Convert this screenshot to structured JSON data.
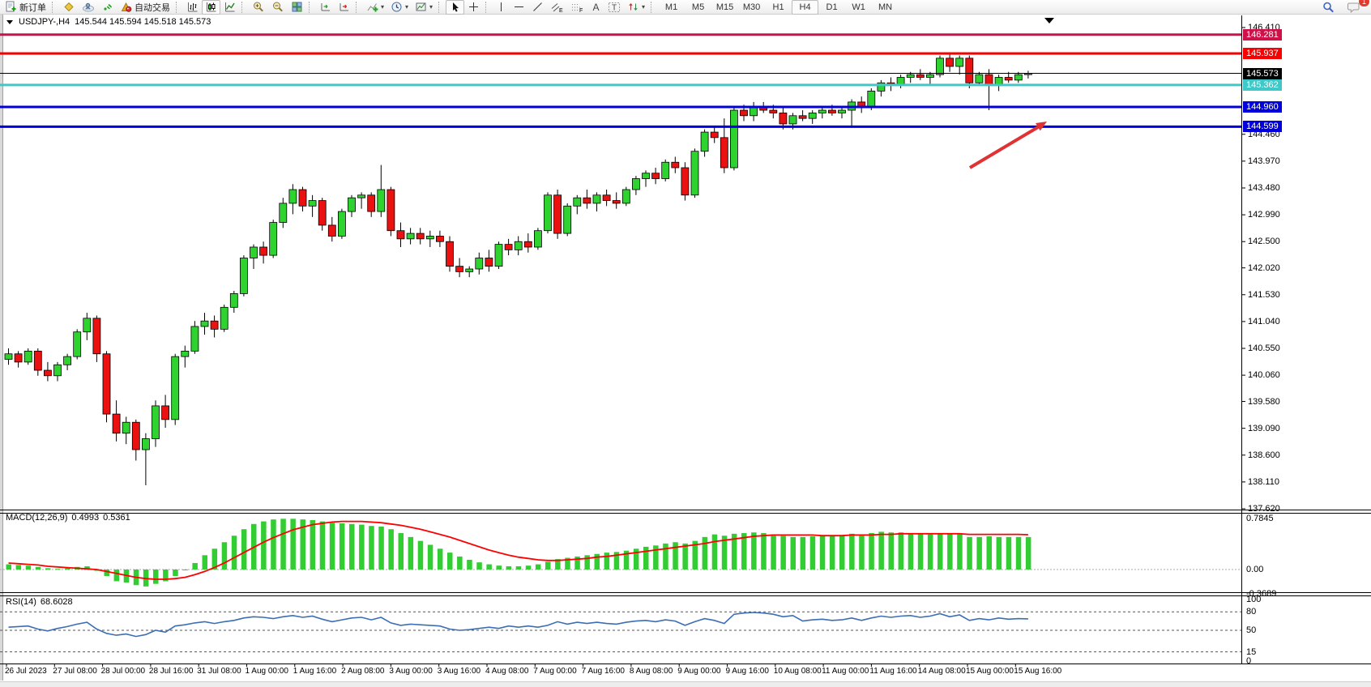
{
  "toolbar": {
    "new_order_label": "新订单",
    "autotrade_label": "自动交易",
    "tool_letters": {
      "channel": "E",
      "fibo": "F",
      "text": "A",
      "label": "T"
    },
    "timeframes": [
      "M1",
      "M5",
      "M15",
      "M30",
      "H1",
      "H4",
      "D1",
      "W1",
      "MN"
    ],
    "active_timeframe": "H4",
    "chat_badge": "1"
  },
  "window": {
    "title": "USDJPY-,H4",
    "ohlc_text": "145.544 145.594 145.518 145.573",
    "open": "145.544",
    "high": "145.594",
    "low": "145.518",
    "close": "145.573"
  },
  "price_axis": {
    "ticks": [
      "146.410",
      "144.460",
      "143.970",
      "143.480",
      "142.990",
      "142.500",
      "142.020",
      "141.530",
      "141.040",
      "140.550",
      "140.060",
      "139.580",
      "139.090",
      "138.600",
      "138.110",
      "137.620"
    ]
  },
  "objects": {
    "hlines": [
      {
        "price": "146.281",
        "value": 146.281,
        "color": "#CE1249",
        "width": 3
      },
      {
        "price": "145.937",
        "value": 145.937,
        "color": "#F60000",
        "width": 3
      },
      {
        "price": "145.573",
        "value": 145.573,
        "color": "#000000",
        "width": 1,
        "current": true
      },
      {
        "price": "145.362",
        "value": 145.362,
        "color": "#3FC8C8",
        "width": 3
      },
      {
        "price": "144.960",
        "value": 144.96,
        "color": "#0000DE",
        "width": 3
      },
      {
        "price": "144.599",
        "value": 144.599,
        "color": "#0000DE",
        "width": 3
      }
    ],
    "arrow": {
      "from": [
        1197,
        207
      ],
      "to": [
        1292,
        150
      ],
      "color": "#E03232"
    }
  },
  "macd": {
    "label": "MACD(12,26,9)",
    "value1": "0.4993",
    "value2": "0.5361",
    "axis": [
      "0.7845",
      "0.00",
      "-0.3689"
    ]
  },
  "rsi": {
    "label": "RSI(14)",
    "value": "68.6028",
    "axis": [
      "100",
      "80",
      "50",
      "15",
      "0"
    ]
  },
  "colors": {
    "bull": "#2FD32F",
    "bear": "#EC1111",
    "wick": "#000000",
    "macd_bar": "#32CD32",
    "macd_signal": "#FF0000",
    "rsi_line": "#3B6EB5"
  },
  "chart_data": [
    {
      "type": "candlestick",
      "name": "USDJPY- H4",
      "ylim": [
        137.62,
        146.41
      ],
      "x_labels": [
        "26 Jul 2023",
        "27 Jul 08:00",
        "28 Jul 00:00",
        "28 Jul 16:00",
        "31 Jul 08:00",
        "1 Aug 00:00",
        "1 Aug 16:00",
        "2 Aug 08:00",
        "3 Aug 00:00",
        "3 Aug 16:00",
        "4 Aug 08:00",
        "7 Aug 00:00",
        "7 Aug 16:00",
        "8 Aug 08:00",
        "9 Aug 00:00",
        "9 Aug 16:00",
        "10 Aug 08:00",
        "11 Aug 00:00",
        "11 Aug 16:00",
        "14 Aug 08:00",
        "15 Aug 00:00",
        "15 Aug 16:00"
      ],
      "ohlc": [
        [
          140.35,
          140.55,
          140.25,
          140.45
        ],
        [
          140.45,
          140.5,
          140.2,
          140.3
        ],
        [
          140.3,
          140.55,
          140.25,
          140.5
        ],
        [
          140.5,
          140.55,
          140.05,
          140.15
        ],
        [
          140.15,
          140.3,
          139.95,
          140.05
        ],
        [
          140.05,
          140.3,
          139.95,
          140.25
        ],
        [
          140.25,
          140.45,
          140.15,
          140.4
        ],
        [
          140.4,
          140.9,
          140.35,
          140.85
        ],
        [
          140.85,
          141.2,
          140.7,
          141.1
        ],
        [
          141.1,
          141.15,
          140.3,
          140.45
        ],
        [
          140.45,
          140.5,
          139.2,
          139.35
        ],
        [
          139.35,
          139.6,
          138.85,
          139.0
        ],
        [
          139.0,
          139.3,
          138.8,
          139.2
        ],
        [
          139.2,
          139.25,
          138.5,
          138.7
        ],
        [
          138.7,
          139.0,
          138.05,
          138.9
        ],
        [
          138.9,
          139.6,
          138.75,
          139.5
        ],
        [
          139.5,
          139.7,
          139.1,
          139.25
        ],
        [
          139.25,
          140.45,
          139.15,
          140.4
        ],
        [
          140.4,
          140.6,
          140.2,
          140.5
        ],
        [
          140.5,
          141.05,
          140.45,
          140.95
        ],
        [
          140.95,
          141.2,
          140.8,
          141.05
        ],
        [
          141.05,
          141.15,
          140.75,
          140.9
        ],
        [
          140.9,
          141.35,
          140.85,
          141.3
        ],
        [
          141.3,
          141.6,
          141.2,
          141.55
        ],
        [
          141.55,
          142.25,
          141.5,
          142.2
        ],
        [
          142.2,
          142.45,
          142.0,
          142.4
        ],
        [
          142.4,
          142.5,
          142.1,
          142.25
        ],
        [
          142.25,
          142.9,
          142.2,
          142.85
        ],
        [
          142.85,
          143.3,
          142.75,
          143.2
        ],
        [
          143.2,
          143.55,
          143.0,
          143.45
        ],
        [
          143.45,
          143.5,
          143.05,
          143.15
        ],
        [
          143.15,
          143.35,
          142.95,
          143.25
        ],
        [
          143.25,
          143.3,
          142.7,
          142.8
        ],
        [
          142.8,
          142.95,
          142.5,
          142.6
        ],
        [
          142.6,
          143.1,
          142.55,
          143.05
        ],
        [
          143.05,
          143.35,
          142.95,
          143.3
        ],
        [
          143.3,
          143.4,
          143.1,
          143.35
        ],
        [
          143.35,
          143.4,
          142.95,
          143.05
        ],
        [
          143.05,
          143.9,
          142.95,
          143.45
        ],
        [
          143.45,
          143.5,
          142.6,
          142.7
        ],
        [
          142.7,
          142.85,
          142.4,
          142.55
        ],
        [
          142.55,
          142.75,
          142.45,
          142.65
        ],
        [
          142.65,
          142.75,
          142.45,
          142.55
        ],
        [
          142.55,
          142.7,
          142.4,
          142.6
        ],
        [
          142.6,
          142.7,
          142.4,
          142.5
        ],
        [
          142.5,
          142.6,
          141.95,
          142.05
        ],
        [
          142.05,
          142.2,
          141.85,
          141.95
        ],
        [
          141.95,
          142.05,
          141.85,
          142.0
        ],
        [
          142.0,
          142.3,
          141.9,
          142.2
        ],
        [
          142.2,
          142.35,
          141.95,
          142.05
        ],
        [
          142.05,
          142.5,
          142.0,
          142.45
        ],
        [
          142.45,
          142.55,
          142.25,
          142.35
        ],
        [
          142.35,
          142.6,
          142.25,
          142.5
        ],
        [
          142.5,
          142.65,
          142.3,
          142.4
        ],
        [
          142.4,
          142.75,
          142.35,
          142.7
        ],
        [
          142.7,
          143.4,
          142.65,
          143.35
        ],
        [
          143.35,
          143.45,
          142.55,
          142.65
        ],
        [
          142.65,
          143.2,
          142.6,
          143.15
        ],
        [
          143.15,
          143.35,
          143.0,
          143.3
        ],
        [
          143.3,
          143.45,
          143.1,
          143.2
        ],
        [
          143.2,
          143.4,
          143.05,
          143.35
        ],
        [
          143.35,
          143.45,
          143.15,
          143.25
        ],
        [
          143.25,
          143.4,
          143.1,
          143.2
        ],
        [
          143.2,
          143.5,
          143.15,
          143.45
        ],
        [
          143.45,
          143.7,
          143.35,
          143.65
        ],
        [
          143.65,
          143.8,
          143.5,
          143.75
        ],
        [
          143.75,
          143.85,
          143.55,
          143.65
        ],
        [
          143.65,
          144.0,
          143.6,
          143.95
        ],
        [
          143.95,
          144.05,
          143.75,
          143.85
        ],
        [
          143.85,
          143.95,
          143.25,
          143.35
        ],
        [
          143.35,
          144.2,
          143.3,
          144.15
        ],
        [
          144.15,
          144.55,
          144.05,
          144.5
        ],
        [
          144.5,
          144.6,
          144.3,
          144.4
        ],
        [
          144.4,
          144.75,
          143.75,
          143.85
        ],
        [
          143.85,
          144.95,
          143.8,
          144.9
        ],
        [
          144.9,
          145.0,
          144.7,
          144.8
        ],
        [
          144.8,
          145.05,
          144.7,
          144.95
        ],
        [
          144.95,
          145.05,
          144.85,
          144.9
        ],
        [
          144.9,
          145.0,
          144.75,
          144.85
        ],
        [
          144.85,
          144.95,
          144.55,
          144.65
        ],
        [
          144.65,
          144.85,
          144.55,
          144.8
        ],
        [
          144.8,
          144.9,
          144.7,
          144.75
        ],
        [
          144.75,
          144.9,
          144.65,
          144.85
        ],
        [
          144.85,
          144.95,
          144.75,
          144.9
        ],
        [
          144.9,
          145.0,
          144.8,
          144.85
        ],
        [
          144.85,
          144.95,
          144.75,
          144.9
        ],
        [
          144.9,
          145.1,
          144.6,
          145.05
        ],
        [
          145.05,
          145.15,
          144.85,
          144.95
        ],
        [
          144.95,
          145.3,
          144.9,
          145.25
        ],
        [
          145.25,
          145.45,
          145.15,
          145.4
        ],
        [
          145.4,
          145.5,
          145.25,
          145.35
        ],
        [
          145.35,
          145.55,
          145.3,
          145.5
        ],
        [
          145.5,
          145.6,
          145.4,
          145.55
        ],
        [
          145.55,
          145.65,
          145.45,
          145.5
        ],
        [
          145.5,
          145.6,
          145.35,
          145.55
        ],
        [
          145.55,
          145.9,
          145.5,
          145.85
        ],
        [
          145.85,
          145.95,
          145.6,
          145.7
        ],
        [
          145.7,
          145.9,
          145.55,
          145.85
        ],
        [
          145.85,
          145.9,
          145.3,
          145.4
        ],
        [
          145.4,
          145.6,
          145.35,
          145.55
        ],
        [
          145.55,
          145.65,
          144.9,
          145.35
        ],
        [
          145.35,
          145.55,
          145.25,
          145.5
        ],
        [
          145.5,
          145.6,
          145.4,
          145.45
        ],
        [
          145.45,
          145.6,
          145.4,
          145.55
        ],
        [
          145.55,
          145.62,
          145.48,
          145.57
        ]
      ]
    },
    {
      "type": "bar",
      "name": "MACD(12,26,9)",
      "ylim": [
        -0.38,
        0.885
      ],
      "levels": [
        0.7845,
        0.0,
        -0.3689
      ],
      "values": [
        0.08,
        0.07,
        0.06,
        0.04,
        0.02,
        0.01,
        0.02,
        0.04,
        0.05,
        -0.02,
        -0.1,
        -0.18,
        -0.2,
        -0.24,
        -0.26,
        -0.22,
        -0.18,
        -0.1,
        0.0,
        0.1,
        0.22,
        0.32,
        0.42,
        0.52,
        0.62,
        0.7,
        0.74,
        0.77,
        0.78,
        0.78,
        0.77,
        0.76,
        0.74,
        0.72,
        0.71,
        0.7,
        0.69,
        0.67,
        0.66,
        0.62,
        0.56,
        0.5,
        0.44,
        0.38,
        0.32,
        0.26,
        0.2,
        0.15,
        0.11,
        0.08,
        0.06,
        0.05,
        0.05,
        0.06,
        0.08,
        0.12,
        0.16,
        0.18,
        0.2,
        0.22,
        0.24,
        0.26,
        0.27,
        0.29,
        0.32,
        0.35,
        0.37,
        0.4,
        0.42,
        0.4,
        0.44,
        0.5,
        0.54,
        0.52,
        0.55,
        0.56,
        0.57,
        0.56,
        0.54,
        0.52,
        0.5,
        0.5,
        0.51,
        0.52,
        0.52,
        0.53,
        0.55,
        0.54,
        0.56,
        0.58,
        0.57,
        0.57,
        0.56,
        0.55,
        0.54,
        0.56,
        0.55,
        0.54,
        0.5,
        0.5,
        0.51,
        0.5,
        0.5,
        0.5,
        0.4993
      ],
      "series": [
        {
          "name": "signal",
          "values": [
            0.1,
            0.09,
            0.08,
            0.07,
            0.05,
            0.04,
            0.03,
            0.02,
            0.01,
            0.0,
            -0.03,
            -0.06,
            -0.09,
            -0.12,
            -0.14,
            -0.15,
            -0.15,
            -0.14,
            -0.12,
            -0.08,
            -0.03,
            0.03,
            0.1,
            0.18,
            0.26,
            0.34,
            0.42,
            0.49,
            0.55,
            0.61,
            0.65,
            0.69,
            0.71,
            0.73,
            0.74,
            0.74,
            0.74,
            0.73,
            0.72,
            0.7,
            0.68,
            0.65,
            0.62,
            0.58,
            0.54,
            0.5,
            0.45,
            0.4,
            0.35,
            0.3,
            0.26,
            0.22,
            0.19,
            0.17,
            0.15,
            0.14,
            0.14,
            0.15,
            0.16,
            0.17,
            0.19,
            0.2,
            0.22,
            0.24,
            0.26,
            0.28,
            0.3,
            0.32,
            0.34,
            0.36,
            0.38,
            0.4,
            0.43,
            0.45,
            0.47,
            0.49,
            0.51,
            0.52,
            0.53,
            0.53,
            0.53,
            0.53,
            0.53,
            0.52,
            0.52,
            0.52,
            0.53,
            0.53,
            0.53,
            0.54,
            0.54,
            0.55,
            0.55,
            0.55,
            0.55,
            0.55,
            0.55,
            0.55,
            0.54,
            0.54,
            0.54,
            0.54,
            0.54,
            0.54,
            0.5361
          ]
        }
      ]
    },
    {
      "type": "line",
      "name": "RSI(14)",
      "ylim": [
        0,
        100
      ],
      "levels": [
        80,
        50,
        15
      ],
      "values": [
        55,
        56,
        57,
        52,
        49,
        53,
        56,
        60,
        63,
        52,
        45,
        42,
        44,
        40,
        43,
        50,
        47,
        57,
        59,
        62,
        64,
        61,
        64,
        66,
        70,
        72,
        71,
        69,
        72,
        74,
        71,
        73,
        68,
        64,
        67,
        70,
        71,
        67,
        71,
        62,
        58,
        60,
        59,
        58,
        57,
        52,
        50,
        51,
        53,
        55,
        53,
        57,
        55,
        57,
        55,
        58,
        64,
        60,
        63,
        61,
        63,
        61,
        60,
        63,
        65,
        66,
        64,
        67,
        65,
        58,
        64,
        69,
        66,
        61,
        76,
        78,
        79,
        78,
        76,
        72,
        74,
        65,
        67,
        68,
        66,
        67,
        70,
        66,
        70,
        73,
        71,
        73,
        74,
        71,
        73,
        77,
        72,
        75,
        66,
        69,
        67,
        70,
        68,
        69,
        68.6
      ]
    }
  ]
}
